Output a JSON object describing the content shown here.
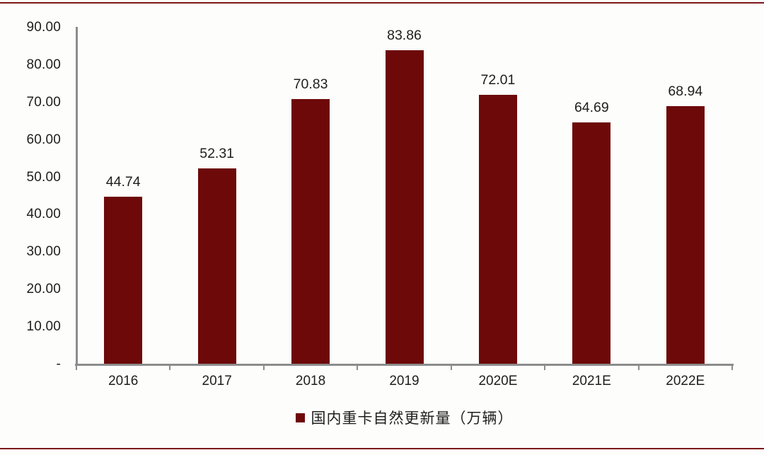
{
  "page": {
    "background": "#fdfdfb",
    "border_rule_color": "#7d181a",
    "axis_color": "#8c8c8c",
    "text_color": "#1e1e1e"
  },
  "chart_data": {
    "type": "bar",
    "title": "",
    "xlabel": "",
    "ylabel": "",
    "categories": [
      "2016",
      "2017",
      "2018",
      "2019",
      "2020E",
      "2021E",
      "2022E"
    ],
    "values": [
      44.74,
      52.31,
      70.83,
      83.86,
      72.01,
      64.69,
      68.94
    ],
    "value_labels": [
      "44.74",
      "52.31",
      "70.83",
      "83.86",
      "72.01",
      "64.69",
      "68.94"
    ],
    "bar_color": "#6d0909",
    "ylim": [
      0,
      90
    ],
    "ytick_values": [
      90,
      80,
      70,
      60,
      50,
      40,
      30,
      20,
      10,
      0
    ],
    "ytick_labels": [
      "90.00",
      "80.00",
      "70.00",
      "60.00",
      "50.00",
      "40.00",
      "30.00",
      "20.00",
      "10.00",
      "-"
    ],
    "grid": false,
    "legend_position": "bottom-center",
    "legend_label": "国内重卡自然更新量（万辆）",
    "legend_marker_color": "#6d0909"
  }
}
